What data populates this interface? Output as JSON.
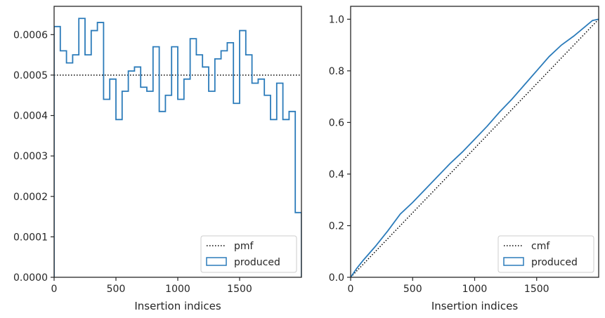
{
  "chart_data": [
    {
      "type": "line",
      "subtype": "step-histogram",
      "xlabel": "Insertion indices",
      "ylabel": "",
      "xlim": [
        0,
        2000
      ],
      "ylim": [
        0,
        0.00067
      ],
      "xticks": [
        0,
        500,
        1000,
        1500
      ],
      "xtick_labels": [
        "0",
        "500",
        "1000",
        "1500"
      ],
      "yticks": [
        0,
        0.0001,
        0.0002,
        0.0003,
        0.0004,
        0.0005,
        0.0006
      ],
      "ytick_labels": [
        "0.0000",
        "0.0001",
        "0.0002",
        "0.0003",
        "0.0004",
        "0.0005",
        "0.0006"
      ],
      "grid": false,
      "legend_position": "lower right",
      "legend": [
        "pmf",
        "produced"
      ],
      "series": [
        {
          "name": "pmf",
          "style": "dotted",
          "color": "#000000",
          "x": [
            0,
            2000
          ],
          "y": [
            0.0005,
            0.0005
          ]
        },
        {
          "name": "produced",
          "style": "step",
          "color": "#2b7bba",
          "bin_edges": [
            0,
            50,
            100,
            150,
            200,
            250,
            300,
            350,
            400,
            450,
            500,
            550,
            600,
            650,
            700,
            750,
            800,
            850,
            900,
            950,
            1000,
            1050,
            1100,
            1150,
            1200,
            1250,
            1300,
            1350,
            1400,
            1450,
            1500,
            1550,
            1600,
            1650,
            1700,
            1750,
            1800,
            1850,
            1900,
            1950,
            2000
          ],
          "values": [
            0.00062,
            0.00056,
            0.00053,
            0.00055,
            0.00064,
            0.00055,
            0.00061,
            0.00063,
            0.00044,
            0.00049,
            0.00039,
            0.00046,
            0.00051,
            0.00052,
            0.00047,
            0.00046,
            0.00057,
            0.00041,
            0.00045,
            0.00057,
            0.00044,
            0.00049,
            0.00059,
            0.00055,
            0.00052,
            0.00046,
            0.00054,
            0.00056,
            0.00058,
            0.00043,
            0.00061,
            0.00055,
            0.00048,
            0.00049,
            0.00045,
            0.00039,
            0.00048,
            0.00039,
            0.00041,
            0.00016
          ]
        }
      ]
    },
    {
      "type": "line",
      "xlabel": "Insertion indices",
      "ylabel": "",
      "xlim": [
        0,
        2000
      ],
      "ylim": [
        0,
        1.05
      ],
      "xticks": [
        0,
        500,
        1000,
        1500
      ],
      "xtick_labels": [
        "0",
        "500",
        "1000",
        "1500"
      ],
      "yticks": [
        0,
        0.2,
        0.4,
        0.6,
        0.8,
        1.0
      ],
      "ytick_labels": [
        "0.0",
        "0.2",
        "0.4",
        "0.6",
        "0.8",
        "1.0"
      ],
      "grid": false,
      "legend_position": "lower right",
      "legend": [
        "cmf",
        "produced"
      ],
      "series": [
        {
          "name": "cmf",
          "style": "dotted",
          "color": "#000000",
          "x": [
            0,
            2000
          ],
          "y": [
            0,
            1.0
          ]
        },
        {
          "name": "produced",
          "style": "solid",
          "color": "#2b7bba",
          "x": [
            0,
            50,
            100,
            200,
            300,
            400,
            500,
            600,
            700,
            800,
            900,
            1000,
            1100,
            1200,
            1300,
            1400,
            1500,
            1600,
            1700,
            1800,
            1900,
            1950,
            2000
          ],
          "y": [
            0,
            0.035,
            0.065,
            0.12,
            0.18,
            0.245,
            0.29,
            0.34,
            0.39,
            0.44,
            0.485,
            0.535,
            0.585,
            0.64,
            0.69,
            0.745,
            0.8,
            0.855,
            0.9,
            0.935,
            0.975,
            0.995,
            1.0
          ]
        }
      ]
    }
  ]
}
